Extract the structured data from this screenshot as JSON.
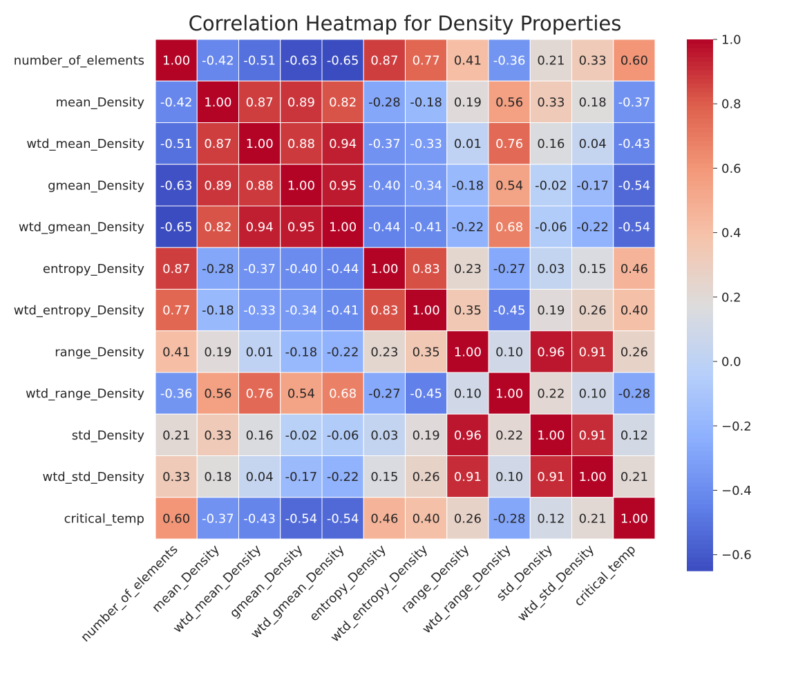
{
  "chart_data": {
    "type": "heatmap",
    "title": "Correlation Heatmap for Density Properties",
    "xlabel": "",
    "ylabel": "",
    "labels": [
      "number_of_elements",
      "mean_Density",
      "wtd_mean_Density",
      "gmean_Density",
      "wtd_gmean_Density",
      "entropy_Density",
      "wtd_entropy_Density",
      "range_Density",
      "wtd_range_Density",
      "std_Density",
      "wtd_std_Density",
      "critical_temp"
    ],
    "matrix": [
      [
        1.0,
        -0.42,
        -0.51,
        -0.63,
        -0.65,
        0.87,
        0.77,
        0.41,
        -0.36,
        0.21,
        0.33,
        0.6
      ],
      [
        -0.42,
        1.0,
        0.87,
        0.89,
        0.82,
        -0.28,
        -0.18,
        0.19,
        0.56,
        0.33,
        0.18,
        -0.37
      ],
      [
        -0.51,
        0.87,
        1.0,
        0.88,
        0.94,
        -0.37,
        -0.33,
        0.01,
        0.76,
        0.16,
        0.04,
        -0.43
      ],
      [
        -0.63,
        0.89,
        0.88,
        1.0,
        0.95,
        -0.4,
        -0.34,
        -0.18,
        0.54,
        -0.02,
        -0.17,
        -0.54
      ],
      [
        -0.65,
        0.82,
        0.94,
        0.95,
        1.0,
        -0.44,
        -0.41,
        -0.22,
        0.68,
        -0.06,
        -0.22,
        -0.54
      ],
      [
        0.87,
        -0.28,
        -0.37,
        -0.4,
        -0.44,
        1.0,
        0.83,
        0.23,
        -0.27,
        0.03,
        0.15,
        0.46
      ],
      [
        0.77,
        -0.18,
        -0.33,
        -0.34,
        -0.41,
        0.83,
        1.0,
        0.35,
        -0.45,
        0.19,
        0.26,
        0.4
      ],
      [
        0.41,
        0.19,
        0.01,
        -0.18,
        -0.22,
        0.23,
        0.35,
        1.0,
        0.1,
        0.96,
        0.91,
        0.26
      ],
      [
        -0.36,
        0.56,
        0.76,
        0.54,
        0.68,
        -0.27,
        -0.45,
        0.1,
        1.0,
        0.22,
        0.1,
        -0.28
      ],
      [
        0.21,
        0.33,
        0.16,
        -0.02,
        -0.06,
        0.03,
        0.19,
        0.96,
        0.22,
        1.0,
        0.91,
        0.12
      ],
      [
        0.33,
        0.18,
        0.04,
        -0.17,
        -0.22,
        0.15,
        0.26,
        0.91,
        0.1,
        0.91,
        1.0,
        0.21
      ],
      [
        0.6,
        -0.37,
        -0.43,
        -0.54,
        -0.54,
        0.46,
        0.4,
        0.26,
        -0.28,
        0.12,
        0.21,
        1.0
      ]
    ],
    "vmin": -0.65,
    "vmax": 1.0,
    "colormap": "coolwarm",
    "colormap_stops": [
      "#3b4cc0",
      "#6282ea",
      "#8db0fe",
      "#b8d0f9",
      "#dddcdc",
      "#f5c4ac",
      "#f49a7b",
      "#de604d",
      "#b40426"
    ],
    "colorbar_ticks": [
      "1.0",
      "0.8",
      "0.6",
      "0.4",
      "0.2",
      "0.0",
      "−0.2",
      "−0.4",
      "−0.6"
    ],
    "colorbar_tick_values": [
      1.0,
      0.8,
      0.6,
      0.4,
      0.2,
      0.0,
      -0.2,
      -0.4,
      -0.6
    ],
    "annotation_format": "2 decimals",
    "cell_border_color": "#ffffff",
    "grid": false
  }
}
